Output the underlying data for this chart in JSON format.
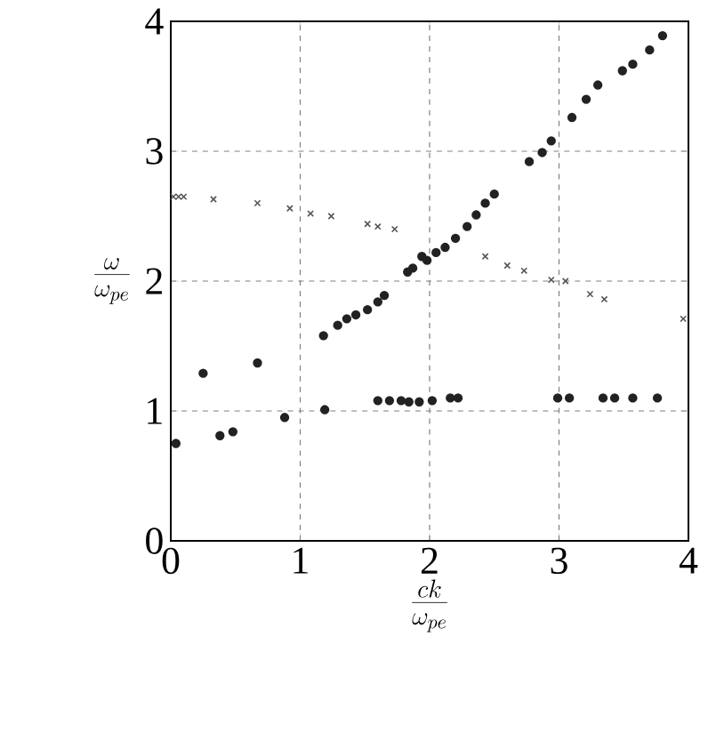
{
  "chart_data": {
    "type": "scatter",
    "xlabel": "\\frac{ck}{\\omega_{pe}}",
    "ylabel": "\\frac{\\omega}{\\omega_{pe}}",
    "xlim": [
      0,
      4
    ],
    "ylim": [
      0,
      4
    ],
    "xticks": [
      0,
      1,
      2,
      3,
      4
    ],
    "yticks": [
      0,
      1,
      2,
      3,
      4
    ],
    "grid": true,
    "series": [
      {
        "color": "#222222",
        "marker": "circle",
        "x": [
          0.04,
          0.25,
          0.38,
          0.48,
          0.67,
          0.88,
          1.19,
          1.6,
          1.69,
          1.78,
          1.84,
          1.92,
          2.02,
          2.16,
          2.22,
          2.99,
          3.08,
          3.34,
          3.43,
          3.57,
          3.76,
          1.18,
          1.29,
          1.36,
          1.43,
          1.52,
          1.6,
          1.65,
          1.83,
          1.87,
          1.94,
          1.98,
          2.05,
          2.12,
          2.2,
          2.29,
          2.36,
          2.43,
          2.5,
          2.77,
          2.87,
          2.94,
          3.1,
          3.21,
          3.3,
          3.49,
          3.57,
          3.7,
          3.8
        ],
        "values": [
          0.75,
          1.29,
          0.81,
          0.84,
          1.37,
          0.95,
          1.01,
          1.08,
          1.08,
          1.08,
          1.07,
          1.07,
          1.08,
          1.1,
          1.1,
          1.1,
          1.1,
          1.1,
          1.1,
          1.1,
          1.1,
          1.58,
          1.66,
          1.71,
          1.74,
          1.78,
          1.84,
          1.89,
          2.07,
          2.1,
          2.19,
          2.16,
          2.22,
          2.26,
          2.33,
          2.42,
          2.51,
          2.6,
          2.67,
          2.92,
          2.99,
          3.08,
          3.26,
          3.4,
          3.51,
          3.62,
          3.67,
          3.78,
          3.89
        ]
      },
      {
        "color": "#555555",
        "marker": "cross",
        "x": [
          0.02,
          0.06,
          0.1,
          0.33,
          0.67,
          0.92,
          1.08,
          1.24,
          1.52,
          1.6,
          1.73,
          2.43,
          2.6,
          2.73,
          2.94,
          3.05,
          3.24,
          3.35,
          3.96
        ],
        "values": [
          2.65,
          2.65,
          2.65,
          2.63,
          2.6,
          2.56,
          2.52,
          2.5,
          2.44,
          2.42,
          2.4,
          2.19,
          2.12,
          2.08,
          2.01,
          2.0,
          1.9,
          1.86,
          1.71
        ]
      }
    ]
  }
}
